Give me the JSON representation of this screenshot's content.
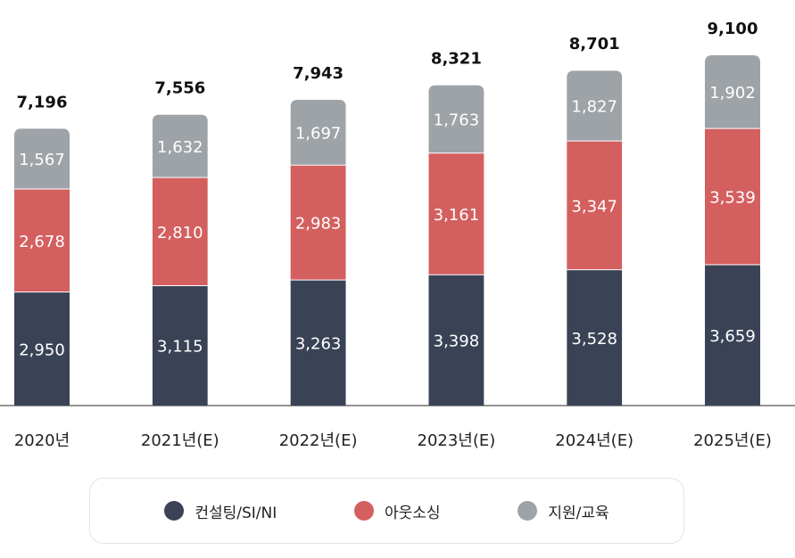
{
  "colors": {
    "consulting": "#3a4356",
    "outsourcing": "#d45f5f",
    "support": "#9ea3a8",
    "axis": "#555555"
  },
  "chart_data": {
    "type": "bar",
    "stacked": true,
    "categories": [
      "2020년",
      "2021년(E)",
      "2022년(E)",
      "2023년(E)",
      "2024년(E)",
      "2025년(E)"
    ],
    "series": [
      {
        "name": "컨설팅/SI/NI",
        "values": [
          2950,
          3115,
          3263,
          3398,
          3528,
          3659
        ]
      },
      {
        "name": "아웃소싱",
        "values": [
          2678,
          2810,
          2983,
          3161,
          3347,
          3539
        ]
      },
      {
        "name": "지원/교육",
        "values": [
          1567,
          1632,
          1697,
          1763,
          1827,
          1902
        ]
      }
    ],
    "totals": [
      "7,196",
      "7,556",
      "7,943",
      "8,321",
      "8,701",
      "9,100"
    ],
    "value_labels": [
      [
        "2,950",
        "3,115",
        "3,263",
        "3,398",
        "3,528",
        "3,659"
      ],
      [
        "2,678",
        "2,810",
        "2,983",
        "3,161",
        "3,347",
        "3,539"
      ],
      [
        "1,567",
        "1,632",
        "1,697",
        "1,763",
        "1,827",
        "1,902"
      ]
    ],
    "ylim": [
      0,
      9100
    ],
    "grid": false,
    "legend_position": "bottom"
  },
  "legend": [
    {
      "label": "컨설팅/SI/NI",
      "color": "#3a4356"
    },
    {
      "label": "아웃소싱",
      "color": "#d45f5f"
    },
    {
      "label": "지원/교육",
      "color": "#9ea3a8"
    }
  ]
}
